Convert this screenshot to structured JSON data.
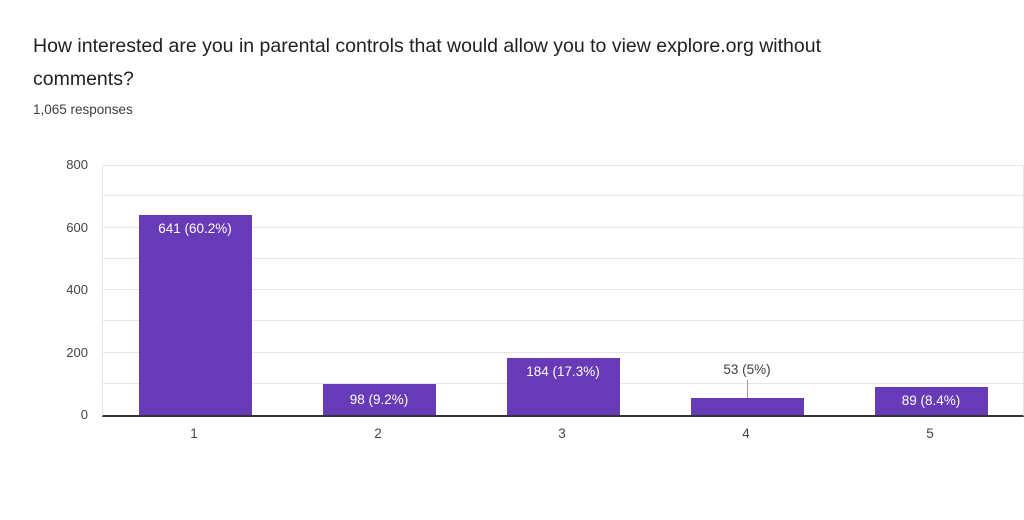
{
  "header": {
    "title": "How interested are you in parental controls that would allow you to view explore.org without comments?",
    "responses_text": "1,065 responses"
  },
  "chart_data": {
    "type": "bar",
    "title": "How interested are you in parental controls that would allow you to view explore.org without comments?",
    "subtitle": "1,065 responses",
    "categories": [
      "1",
      "2",
      "3",
      "4",
      "5"
    ],
    "values": [
      641,
      98,
      184,
      53,
      89
    ],
    "data_labels": [
      "641 (60.2%)",
      "98 (9.2%)",
      "184 (17.3%)",
      "53 (5%)",
      "89 (8.4%)"
    ],
    "label_placement": [
      "inside",
      "inside",
      "inside",
      "outside",
      "inside"
    ],
    "xlabel": "",
    "ylabel": "",
    "ylim": [
      0,
      800
    ],
    "yticks": [
      0,
      200,
      400,
      600,
      800
    ],
    "gridline_interval": 100,
    "grid": true,
    "legend": "none",
    "bar_color": "#673ab7"
  },
  "colors": {
    "bar": "#673ab7",
    "bar_label_inside": "#ffffff",
    "bar_label_outside": "#404040",
    "axis_label": "#444444",
    "gridline": "#e6e6e6",
    "axis_line": "#333333",
    "title_text": "#212121",
    "subtitle_text": "#3c4043",
    "annotation_stem": "#9e9e9e",
    "background": "#ffffff"
  }
}
